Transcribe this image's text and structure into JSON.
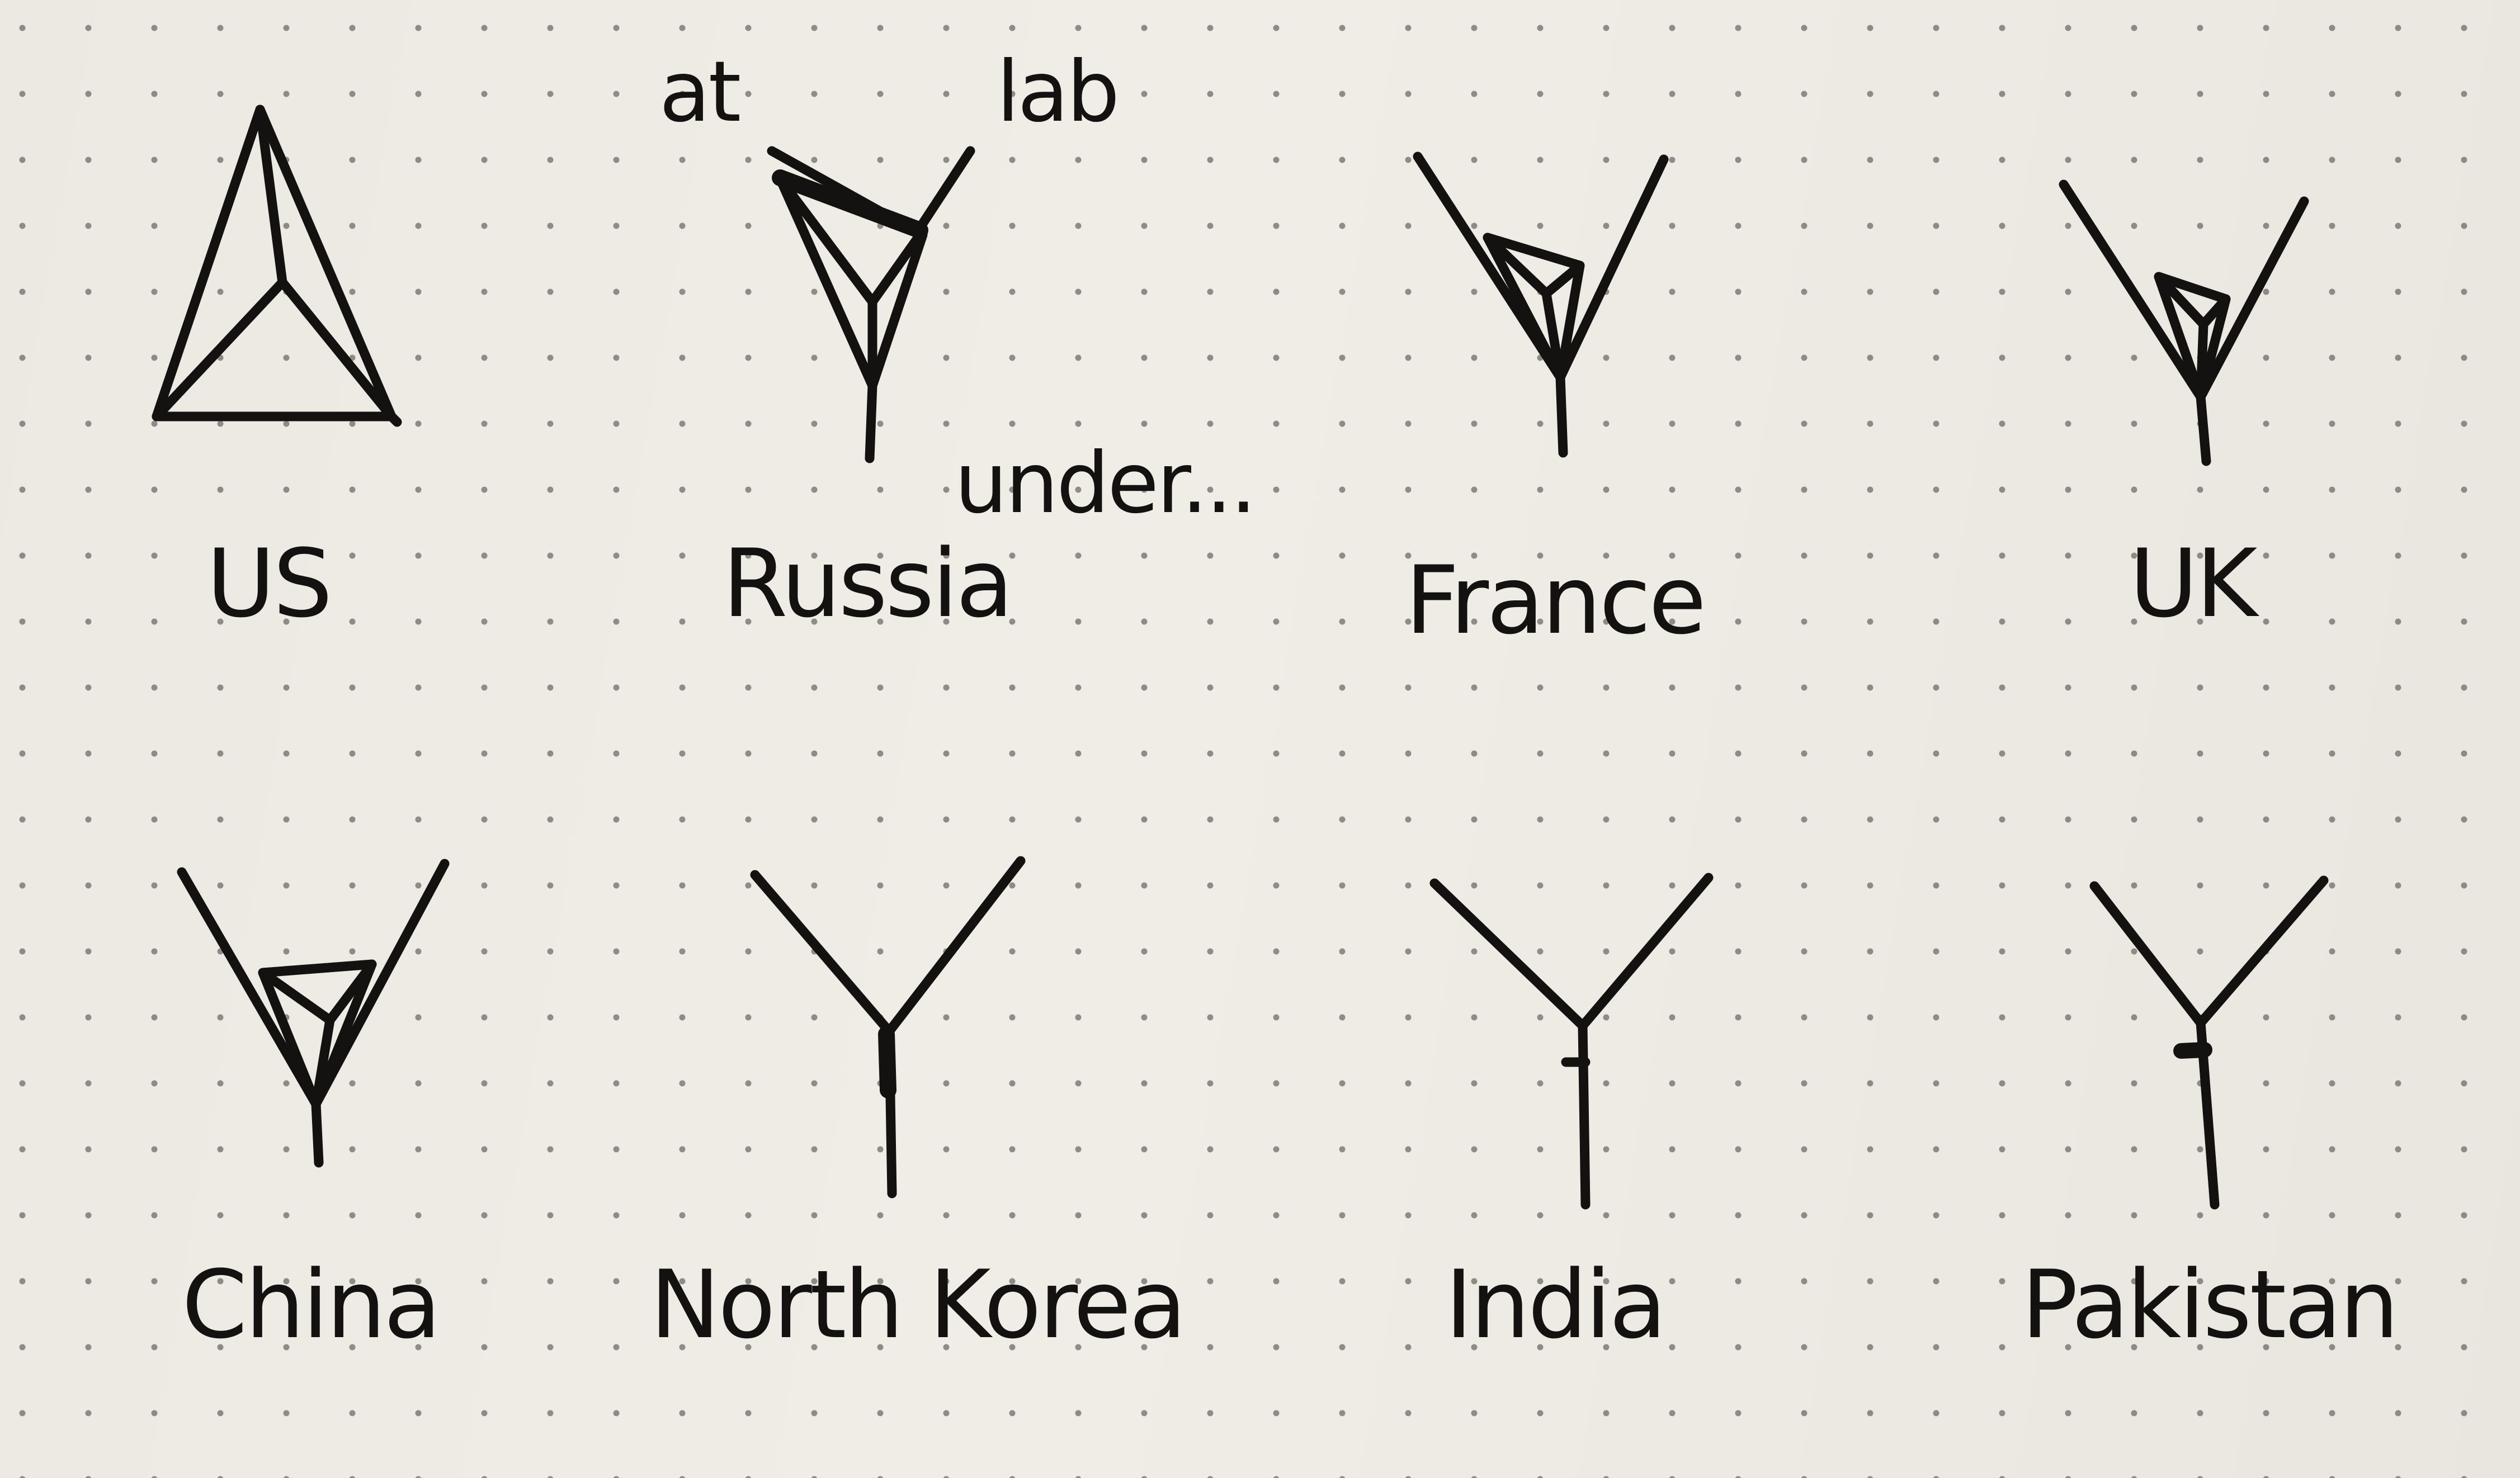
{
  "symbols": [
    {
      "label": "US",
      "glyph": "closed-triangle-icon"
    },
    {
      "label": "Russia",
      "glyph": "open-triangle-y-icon"
    },
    {
      "label": "France",
      "glyph": "small-triangle-y-icon"
    },
    {
      "label": "UK",
      "glyph": "smaller-triangle-y-icon"
    },
    {
      "label": "China",
      "glyph": "small-triangle-y-icon"
    },
    {
      "label": "North Korea",
      "glyph": "y-with-tick-icon"
    },
    {
      "label": "India",
      "glyph": "y-with-tick-icon"
    },
    {
      "label": "Pakistan",
      "glyph": "y-with-tick-icon"
    }
  ],
  "annotations": {
    "at": "at",
    "lab": "lab",
    "under": "under..."
  },
  "colors": {
    "ink": "#141210",
    "paper": "#ece9e2",
    "dots": "#6e6b66"
  }
}
